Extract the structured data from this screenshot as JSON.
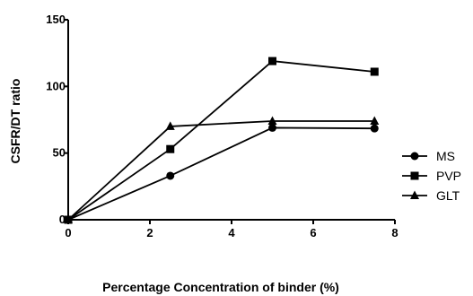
{
  "chart_data": {
    "type": "line",
    "title": "",
    "xlabel": "Percentage Concentration of binder (%)",
    "ylabel": "CSFR/DT ratio",
    "xlim": [
      0,
      8
    ],
    "ylim": [
      0,
      150
    ],
    "xticks": [
      0,
      2,
      4,
      6,
      8
    ],
    "yticks": [
      0,
      50,
      100,
      150
    ],
    "grid": false,
    "legend_position": "right",
    "series": [
      {
        "name": "MS",
        "marker": "circle",
        "x": [
          0,
          2.5,
          5,
          7.5
        ],
        "y": [
          0,
          33,
          69,
          68.5
        ]
      },
      {
        "name": "PVP",
        "marker": "square",
        "x": [
          0,
          2.5,
          5,
          7.5
        ],
        "y": [
          0,
          53,
          119,
          111
        ]
      },
      {
        "name": "GLT",
        "marker": "triangle",
        "x": [
          0,
          2.5,
          5,
          7.5
        ],
        "y": [
          0,
          70,
          74,
          74
        ]
      }
    ]
  }
}
